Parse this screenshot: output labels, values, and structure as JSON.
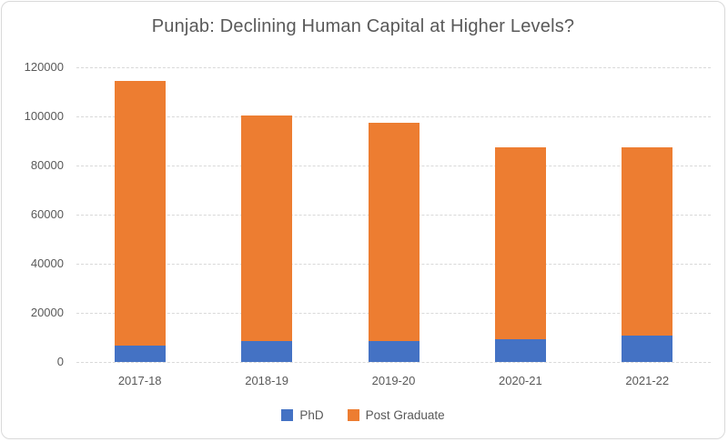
{
  "chart_data": {
    "type": "bar",
    "stacked": true,
    "title": "Punjab: Declining Human Capital at Higher Levels?",
    "categories": [
      "2017-18",
      "2018-19",
      "2019-20",
      "2020-21",
      "2021-22"
    ],
    "series": [
      {
        "name": "PhD",
        "color": "#4472C4",
        "values": [
          6700,
          8500,
          8500,
          9300,
          10600
        ]
      },
      {
        "name": "Post Graduate",
        "color": "#ED7D31",
        "values": [
          107800,
          91800,
          89000,
          78200,
          76900
        ]
      }
    ],
    "xlabel": "",
    "ylabel": "",
    "ylim": [
      0,
      120000
    ],
    "yticks": [
      0,
      20000,
      40000,
      60000,
      80000,
      100000,
      120000
    ],
    "ytick_labels": [
      "0",
      "20000",
      "40000",
      "60000",
      "80000",
      "100000",
      "120000"
    ],
    "grid": "horizontal, dashed, on",
    "legend_position": "bottom-center"
  },
  "styles": {
    "text_color": "#595959",
    "grid_color": "#D9D9D9",
    "frame_border_color": "#D9D9D9",
    "background": "#FFFFFF"
  }
}
